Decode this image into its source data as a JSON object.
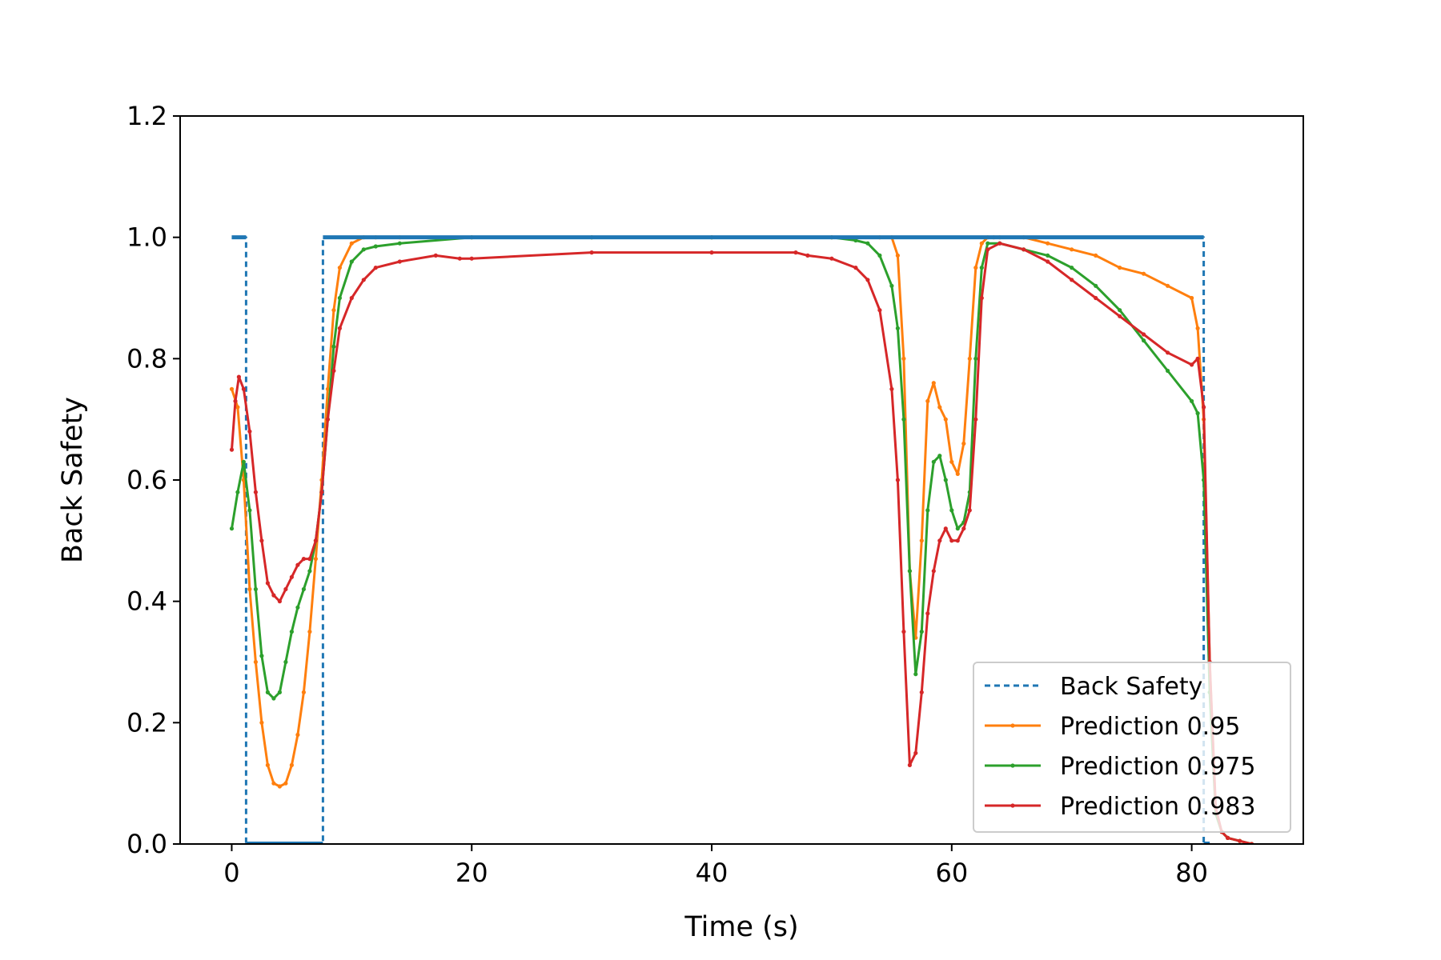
{
  "chart_data": {
    "type": "line",
    "title": "",
    "xlabel": "Time (s)",
    "ylabel": "Back Safety",
    "xlim": [
      -4.3,
      89.3
    ],
    "ylim": [
      0,
      1.2
    ],
    "xticks": [
      0,
      20,
      40,
      60,
      80
    ],
    "xtick_labels": [
      "0",
      "20",
      "40",
      "60",
      "80"
    ],
    "yticks": [
      0,
      0.2,
      0.4,
      0.6,
      0.8,
      1.0,
      1.2
    ],
    "ytick_labels": [
      "0.0",
      "0.2",
      "0.4",
      "0.6",
      "0.8",
      "1.0",
      "1.2"
    ],
    "grid": false,
    "legend_position": "lower-right",
    "series": [
      {
        "name": "Back Safety",
        "color": "#1f77b4",
        "style": "dashed",
        "x": [
          0,
          1.2,
          1.2,
          7.6,
          7.6,
          81,
          81,
          81.5
        ],
        "y": [
          1,
          1,
          0,
          0,
          1,
          1,
          0,
          0
        ]
      },
      {
        "name": "Prediction 0.95",
        "color": "#ff7f0e",
        "style": "solid-dotted",
        "x": [
          0,
          0.5,
          1,
          1.5,
          2,
          2.5,
          3,
          3.5,
          4,
          4.5,
          5,
          5.5,
          6,
          6.5,
          7,
          7.5,
          8,
          8.5,
          9,
          10,
          11,
          12,
          14,
          20,
          30,
          40,
          50,
          54,
          55,
          55.5,
          56,
          56.5,
          57,
          57.5,
          58,
          58.5,
          59,
          59.5,
          60,
          60.5,
          61,
          61.5,
          62,
          62.5,
          63,
          63.5,
          64,
          66,
          68,
          70,
          72,
          74,
          76,
          78,
          80,
          80.5,
          81,
          81.5,
          82,
          82.5,
          83,
          84,
          85
        ],
        "y": [
          0.75,
          0.72,
          0.6,
          0.42,
          0.3,
          0.2,
          0.13,
          0.1,
          0.095,
          0.1,
          0.13,
          0.18,
          0.25,
          0.35,
          0.47,
          0.6,
          0.75,
          0.88,
          0.95,
          0.99,
          1.0,
          1.0,
          1.0,
          1.0,
          1.0,
          1.0,
          1.0,
          1.0,
          1.0,
          0.97,
          0.8,
          0.45,
          0.34,
          0.5,
          0.73,
          0.76,
          0.72,
          0.7,
          0.63,
          0.61,
          0.66,
          0.8,
          0.95,
          0.99,
          1.0,
          1.0,
          1.0,
          1.0,
          0.99,
          0.98,
          0.97,
          0.95,
          0.94,
          0.92,
          0.9,
          0.85,
          0.7,
          0.3,
          0.05,
          0.02,
          0.01,
          0.005,
          0.0
        ]
      },
      {
        "name": "Prediction 0.975",
        "color": "#2ca02c",
        "style": "solid-dotted",
        "x": [
          0,
          0.5,
          1,
          1.5,
          2,
          2.5,
          3,
          3.5,
          4,
          4.5,
          5,
          5.5,
          6,
          6.5,
          7,
          7.5,
          8,
          8.5,
          9,
          10,
          11,
          12,
          14,
          20,
          30,
          40,
          50,
          52,
          53,
          54,
          55,
          55.5,
          56,
          56.5,
          57,
          57.5,
          58,
          58.5,
          59,
          59.5,
          60,
          60.5,
          61,
          61.5,
          62,
          62.5,
          63,
          64,
          66,
          68,
          70,
          72,
          74,
          76,
          78,
          80,
          80.5,
          81,
          81.5,
          82,
          82.5,
          83,
          84,
          85
        ],
        "y": [
          0.52,
          0.58,
          0.63,
          0.55,
          0.42,
          0.31,
          0.25,
          0.24,
          0.25,
          0.3,
          0.35,
          0.39,
          0.42,
          0.45,
          0.5,
          0.58,
          0.7,
          0.82,
          0.9,
          0.96,
          0.98,
          0.985,
          0.99,
          1.0,
          1.0,
          1.0,
          1.0,
          0.995,
          0.99,
          0.97,
          0.92,
          0.85,
          0.7,
          0.45,
          0.28,
          0.35,
          0.55,
          0.63,
          0.64,
          0.6,
          0.55,
          0.52,
          0.53,
          0.58,
          0.8,
          0.95,
          0.99,
          0.99,
          0.98,
          0.97,
          0.95,
          0.92,
          0.88,
          0.83,
          0.78,
          0.73,
          0.71,
          0.6,
          0.25,
          0.05,
          0.02,
          0.01,
          0.005,
          0.0
        ]
      },
      {
        "name": "Prediction 0.983",
        "color": "#d62728",
        "style": "solid-dotted",
        "x": [
          0,
          0.3,
          0.6,
          1,
          1.5,
          2,
          2.5,
          3,
          3.5,
          4,
          4.5,
          5,
          5.5,
          6,
          6.5,
          7,
          7.5,
          8,
          8.5,
          9,
          10,
          11,
          12,
          14,
          17,
          19,
          20,
          30,
          40,
          47,
          48,
          50,
          52,
          53,
          54,
          55,
          55.5,
          56,
          56.5,
          57,
          57.5,
          58,
          58.5,
          59,
          59.5,
          60,
          60.5,
          61,
          61.5,
          62,
          62.5,
          63,
          64,
          66,
          68,
          70,
          72,
          74,
          76,
          78,
          80,
          80.5,
          81,
          81.5,
          82,
          82.5,
          83,
          84,
          85
        ],
        "y": [
          0.65,
          0.73,
          0.77,
          0.75,
          0.68,
          0.58,
          0.5,
          0.43,
          0.41,
          0.4,
          0.42,
          0.44,
          0.46,
          0.47,
          0.47,
          0.5,
          0.58,
          0.7,
          0.78,
          0.85,
          0.9,
          0.93,
          0.95,
          0.96,
          0.97,
          0.965,
          0.965,
          0.975,
          0.975,
          0.975,
          0.97,
          0.965,
          0.95,
          0.93,
          0.88,
          0.75,
          0.6,
          0.35,
          0.13,
          0.15,
          0.25,
          0.38,
          0.45,
          0.5,
          0.52,
          0.5,
          0.5,
          0.52,
          0.55,
          0.7,
          0.9,
          0.98,
          0.99,
          0.98,
          0.96,
          0.93,
          0.9,
          0.87,
          0.84,
          0.81,
          0.79,
          0.8,
          0.72,
          0.3,
          0.06,
          0.02,
          0.01,
          0.005,
          0.0
        ]
      }
    ]
  }
}
